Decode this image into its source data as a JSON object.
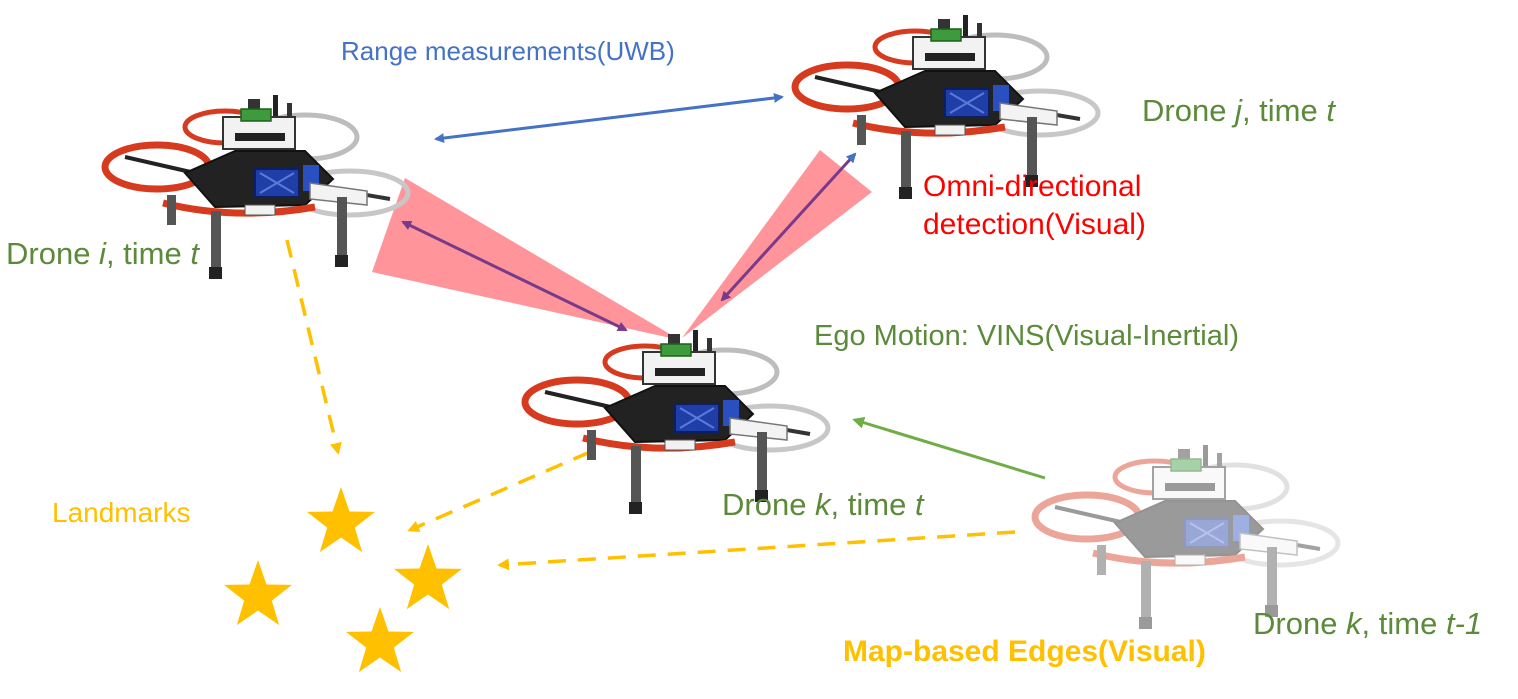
{
  "colors": {
    "uwb": "#4472c4",
    "visual_detection": "#ff0000",
    "detection_cone": "#ff8a8f",
    "detection_arrow": "#7a3a8a",
    "ego_motion": "#70ad47",
    "landmark": "#ffc000",
    "label_green": "#5b8a3a"
  },
  "labels": {
    "range": "Range measurements(UWB)",
    "drone_j": {
      "prefix": "Drone ",
      "var": "j",
      "mid": ", time ",
      "time": "t"
    },
    "drone_i": {
      "prefix": "Drone ",
      "var": "i",
      "mid": ", time ",
      "time": "t"
    },
    "omni_line1": "Omni-directional",
    "omni_line2": "detection(Visual)",
    "ego": "Ego Motion: VINS(Visual-Inertial)",
    "landmarks": "Landmarks",
    "drone_k": {
      "prefix": "Drone ",
      "var": "k",
      "mid": ", time ",
      "time": "t"
    },
    "drone_k_prev": {
      "prefix": "Drone ",
      "var": "k",
      "mid": ", time ",
      "time": "t-1"
    },
    "map_edges": "Map-based Edges(Visual)"
  },
  "icons": [
    "drone-icon",
    "star-icon"
  ]
}
